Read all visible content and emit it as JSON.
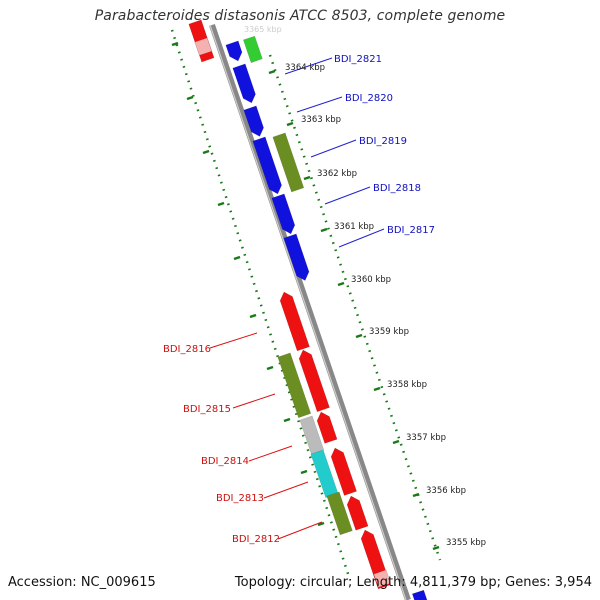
{
  "title": "Parabacteroides distasonis ATCC 8503, complete genome",
  "footer": {
    "accession": "Accession: NC_009615",
    "summary": "Topology: circular; Length: 4,811,379 bp; Genes: 3,954"
  },
  "ticks": [
    {
      "label": "3364 kbp"
    },
    {
      "label": "3363 kbp"
    },
    {
      "label": "3362 kbp"
    },
    {
      "label": "3361 kbp"
    },
    {
      "label": "3360 kbp"
    },
    {
      "label": "3359 kbp"
    },
    {
      "label": "3358 kbp"
    },
    {
      "label": "3357 kbp"
    },
    {
      "label": "3356 kbp"
    },
    {
      "label": "3355 kbp"
    }
  ],
  "genes_forward": [
    {
      "label": "BDI_2821",
      "color": "#1010d0"
    },
    {
      "label": "BDI_2820",
      "color": "#1010d0"
    },
    {
      "label": "BDI_2819",
      "color": "#1010d0"
    },
    {
      "label": "BDI_2818",
      "color": "#1010d0"
    },
    {
      "label": "BDI_2817",
      "color": "#1010d0"
    }
  ],
  "genes_reverse": [
    {
      "label": "BDI_2816",
      "color": "#d01010"
    },
    {
      "label": "BDI_2815",
      "color": "#d01010"
    },
    {
      "label": "BDI_2814",
      "color": "#d01010"
    },
    {
      "label": "BDI_2813",
      "color": "#d01010"
    },
    {
      "label": "BDI_2812",
      "color": "#d01010"
    }
  ],
  "colors": {
    "forward_cds": "#1111dd",
    "reverse_cds": "#ee1111",
    "rna": "#33cc33",
    "other_green": "#6b8e23",
    "grey_feature": "#bbbbbb",
    "cyan_feature": "#22cccc",
    "backbone": "#888888",
    "tick_green": "#1a7a1a"
  }
}
